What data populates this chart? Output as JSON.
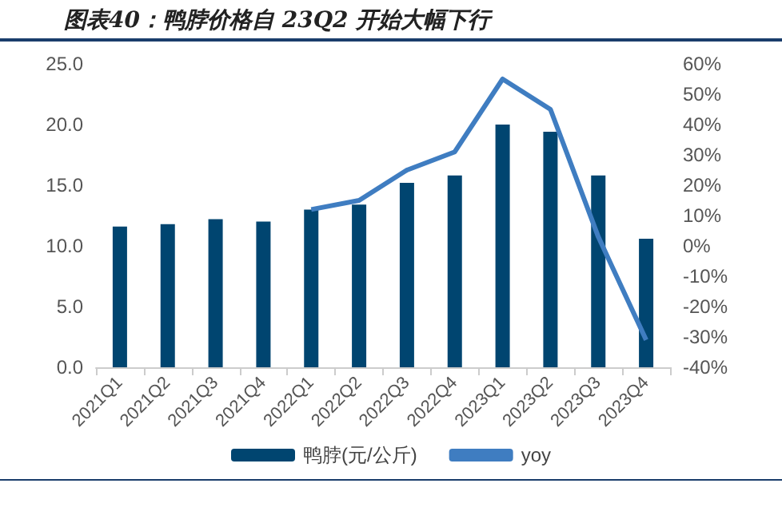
{
  "chart_data": {
    "type": "bar",
    "title": "图表40：鸭脖价格自 23Q2 开始大幅下行",
    "categories": [
      "2021Q1",
      "2021Q2",
      "2021Q3",
      "2021Q4",
      "2022Q1",
      "2022Q2",
      "2022Q3",
      "2022Q4",
      "2023Q1",
      "2023Q2",
      "2023Q3",
      "2023Q4"
    ],
    "series": [
      {
        "name": "鸭脖(元/公斤)",
        "color": "#004570",
        "values": [
          11.6,
          11.8,
          12.2,
          12.0,
          13.0,
          13.4,
          15.2,
          15.8,
          20.0,
          19.4,
          15.8,
          10.6
        ]
      },
      {
        "name": "yoy",
        "type": "line",
        "axis": "y2",
        "color": "#3f7dc1",
        "values": [
          null,
          null,
          null,
          null,
          12,
          15,
          25,
          31,
          55,
          45,
          3,
          -31
        ]
      }
    ],
    "ylim": [
      0,
      25
    ],
    "yticks": [
      {
        "value": 0,
        "label": "0.0"
      },
      {
        "value": 5,
        "label": "5.0"
      },
      {
        "value": 10,
        "label": "10.0"
      },
      {
        "value": 15,
        "label": "15.0"
      },
      {
        "value": 20,
        "label": "20.0"
      },
      {
        "value": 25,
        "label": "25.0"
      }
    ],
    "y2lim": [
      -40,
      60
    ],
    "y2ticks": [
      {
        "value": -40,
        "label": "-40%"
      },
      {
        "value": -30,
        "label": "-30%"
      },
      {
        "value": -20,
        "label": "-20%"
      },
      {
        "value": -10,
        "label": "-10%"
      },
      {
        "value": 0,
        "label": "0%"
      },
      {
        "value": 10,
        "label": "10%"
      },
      {
        "value": 20,
        "label": "20%"
      },
      {
        "value": 30,
        "label": "30%"
      },
      {
        "value": 40,
        "label": "40%"
      },
      {
        "value": 50,
        "label": "50%"
      },
      {
        "value": 60,
        "label": "60%"
      }
    ],
    "grid": false,
    "legend": "bottom",
    "marker": "none"
  }
}
